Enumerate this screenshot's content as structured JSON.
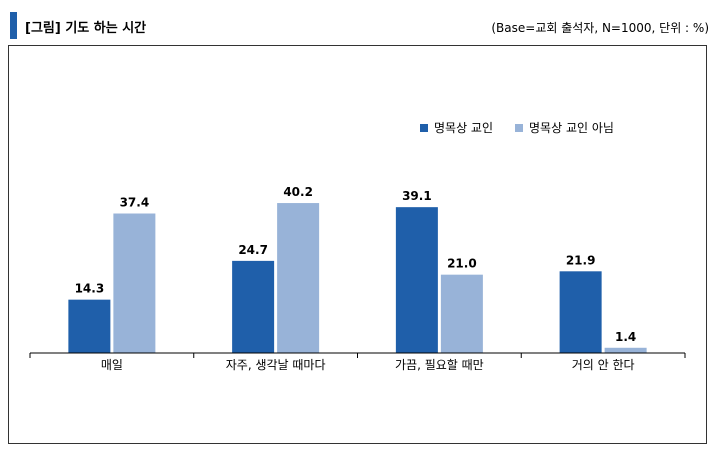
{
  "header": {
    "title": "[그림] 기도 하는 시간",
    "base_note": "(Base=교회 출석자, N=1000, 단위 : %)"
  },
  "colors": {
    "accent": "#1f5faa",
    "series1": "#1f5faa",
    "series2": "#98b3d8"
  },
  "chart_data": {
    "type": "bar",
    "title": "[그림] 기도 하는 시간",
    "categories": [
      "매일",
      "자주, 생각날 때마다",
      "가끔, 필요할 때만",
      "거의 안 한다"
    ],
    "series": [
      {
        "name": "명목상 교인",
        "values": [
          14.3,
          24.7,
          39.1,
          21.9
        ]
      },
      {
        "name": "명목상 교인 아님",
        "values": [
          37.4,
          40.2,
          21.0,
          1.4
        ]
      }
    ],
    "ylim": [
      0,
      55
    ],
    "legend": "top-right",
    "grid": false
  }
}
